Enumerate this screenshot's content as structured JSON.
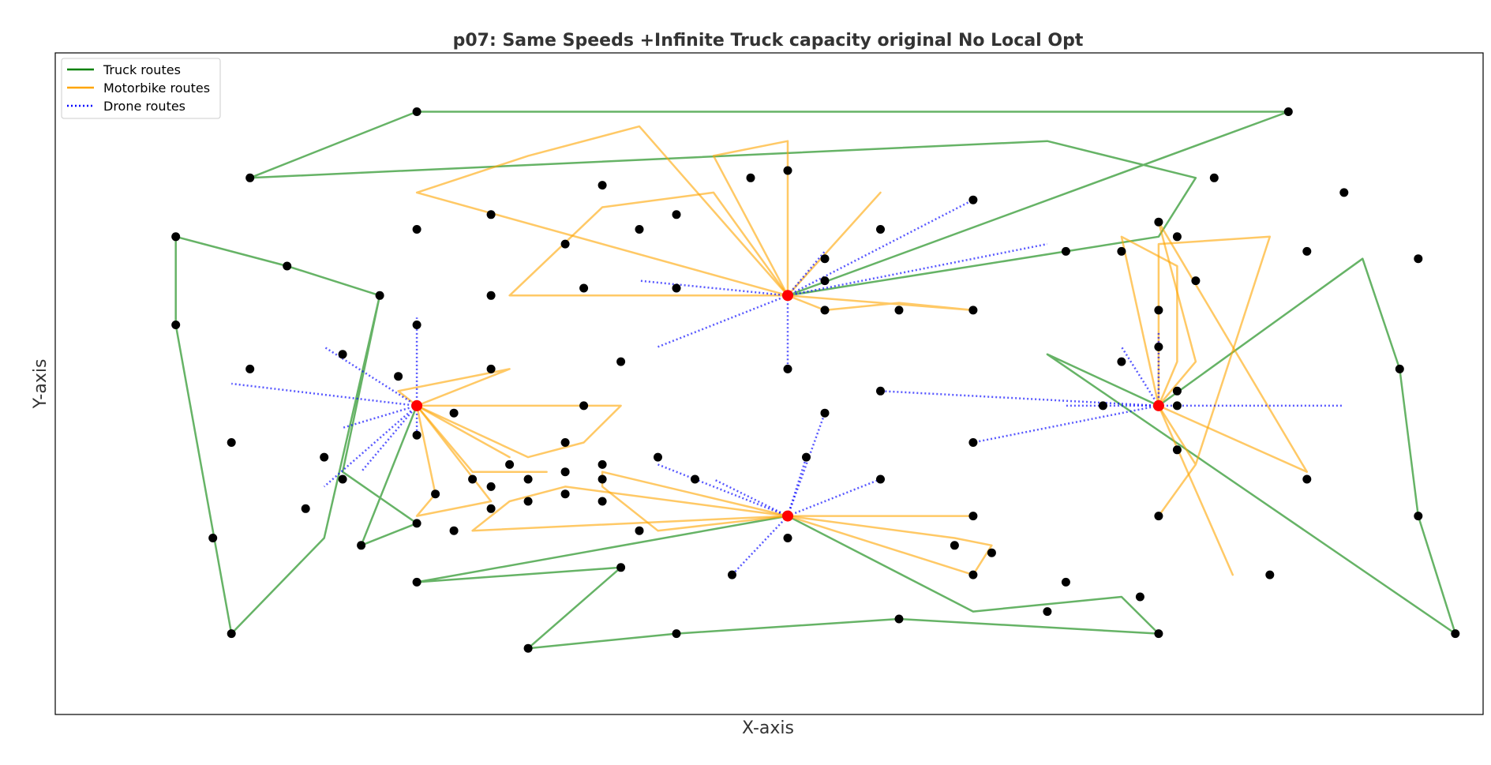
{
  "chart_data": {
    "type": "scatter",
    "title": "p07: Same Speeds +Infinite Truck capacity original No Local Opt",
    "xlabel": "X-axis",
    "ylabel": "Y-axis",
    "xlim": [
      -5,
      72
    ],
    "ylim": [
      -5,
      85
    ],
    "grid": false,
    "ticks": false,
    "legend": {
      "placement": "top-left",
      "entries": [
        {
          "label": "Truck routes",
          "color": "#008000",
          "style": "solid"
        },
        {
          "label": "Motorbike routes",
          "color": "#FFA500",
          "style": "solid"
        },
        {
          "label": "Drone routes",
          "color": "#0000FF",
          "style": "dotted"
        }
      ]
    },
    "colors": {
      "truck": "#008000",
      "motorbike": "#FFA500",
      "drone": "#0000FF",
      "customer": "#000000",
      "depot": "#FF0000"
    },
    "depots": [
      [
        14.5,
        37
      ],
      [
        34.5,
        52
      ],
      [
        54.5,
        37
      ],
      [
        34.5,
        22
      ]
    ],
    "customers": [
      [
        14.5,
        77
      ],
      [
        5.5,
        68
      ],
      [
        1.5,
        60
      ],
      [
        7.5,
        56
      ],
      [
        12.5,
        52
      ],
      [
        1.5,
        48
      ],
      [
        4.5,
        32
      ],
      [
        3.5,
        19
      ],
      [
        11.5,
        18
      ],
      [
        4.5,
        6
      ],
      [
        61.5,
        77
      ],
      [
        57.5,
        68
      ],
      [
        55.5,
        60
      ],
      [
        55.5,
        37
      ],
      [
        49.5,
        58
      ],
      [
        64.5,
        66
      ],
      [
        68.5,
        57
      ],
      [
        67.5,
        42
      ],
      [
        68.5,
        22
      ],
      [
        70.5,
        6
      ],
      [
        49.5,
        13
      ],
      [
        48.5,
        9
      ],
      [
        53.5,
        11
      ],
      [
        54.5,
        6
      ],
      [
        40.5,
        8
      ],
      [
        28.5,
        6
      ],
      [
        20.5,
        4
      ],
      [
        14.5,
        13
      ],
      [
        25.5,
        15
      ],
      [
        24.5,
        67
      ],
      [
        18.5,
        63
      ],
      [
        14.5,
        61
      ],
      [
        26.5,
        61
      ],
      [
        22.5,
        59
      ],
      [
        28.5,
        63
      ],
      [
        32.5,
        68
      ],
      [
        34.5,
        69
      ],
      [
        39.5,
        61
      ],
      [
        18.5,
        52
      ],
      [
        28.5,
        53
      ],
      [
        36.5,
        54
      ],
      [
        40.5,
        50
      ],
      [
        36.5,
        50
      ],
      [
        44.5,
        50
      ],
      [
        44.5,
        65
      ],
      [
        36.5,
        57
      ],
      [
        23.5,
        53
      ],
      [
        25.5,
        43
      ],
      [
        34.5,
        42
      ],
      [
        14.5,
        48
      ],
      [
        10.5,
        44
      ],
      [
        5.5,
        42
      ],
      [
        13.5,
        41
      ],
      [
        16.5,
        36
      ],
      [
        18.5,
        42
      ],
      [
        23.5,
        37
      ],
      [
        22.5,
        32
      ],
      [
        19.5,
        29
      ],
      [
        18.5,
        26
      ],
      [
        20.5,
        24
      ],
      [
        14.5,
        33
      ],
      [
        15.5,
        25
      ],
      [
        14.5,
        21
      ],
      [
        9.5,
        30
      ],
      [
        10.5,
        27
      ],
      [
        8.5,
        23
      ],
      [
        17.5,
        27
      ],
      [
        16.5,
        20
      ],
      [
        18.5,
        23
      ],
      [
        22.5,
        28
      ],
      [
        24.5,
        29
      ],
      [
        24.5,
        24
      ],
      [
        22.5,
        25
      ],
      [
        20.5,
        27
      ],
      [
        24.5,
        27
      ],
      [
        26.5,
        20
      ],
      [
        27.5,
        30
      ],
      [
        29.5,
        27
      ],
      [
        36.5,
        36
      ],
      [
        35.5,
        30
      ],
      [
        39.5,
        27
      ],
      [
        34.5,
        19
      ],
      [
        31.5,
        14
      ],
      [
        44.5,
        22
      ],
      [
        43.5,
        18
      ],
      [
        45.5,
        17
      ],
      [
        44.5,
        14
      ],
      [
        39.5,
        39
      ],
      [
        44.5,
        32
      ],
      [
        51.5,
        37
      ],
      [
        52.5,
        43
      ],
      [
        54.5,
        45
      ],
      [
        54.5,
        50
      ],
      [
        54.5,
        62
      ],
      [
        52.5,
        58
      ],
      [
        56.5,
        54
      ],
      [
        62.5,
        58
      ],
      [
        55.5,
        39
      ],
      [
        55.5,
        31
      ],
      [
        54.5,
        22
      ],
      [
        60.5,
        14
      ],
      [
        62.5,
        27
      ]
    ],
    "routes": {
      "truck": [
        [
          [
            34.5,
            52
          ],
          [
            61.5,
            77
          ],
          [
            14.5,
            77
          ],
          [
            5.5,
            68
          ],
          [
            48.5,
            73
          ],
          [
            56.5,
            68
          ],
          [
            54.5,
            60
          ],
          [
            34.5,
            52
          ]
        ],
        [
          [
            14.5,
            37
          ],
          [
            11.5,
            18
          ],
          [
            14.5,
            21
          ],
          [
            10.5,
            28
          ],
          [
            12.5,
            52
          ],
          [
            7.5,
            56
          ],
          [
            1.5,
            60
          ],
          [
            1.5,
            48
          ],
          [
            4.5,
            6
          ],
          [
            9.5,
            19
          ],
          [
            12.5,
            52
          ]
        ],
        [
          [
            34.5,
            22
          ],
          [
            14.5,
            13
          ],
          [
            25.5,
            15
          ],
          [
            20.5,
            4
          ],
          [
            28.5,
            6
          ],
          [
            40.5,
            8
          ],
          [
            54.5,
            6
          ],
          [
            52.5,
            11
          ],
          [
            48.5,
            10
          ],
          [
            44.5,
            9
          ],
          [
            34.5,
            22
          ]
        ],
        [
          [
            54.5,
            37
          ],
          [
            65.5,
            57
          ],
          [
            67.5,
            42
          ],
          [
            68.5,
            22
          ],
          [
            70.5,
            6
          ],
          [
            48.5,
            44
          ],
          [
            54.5,
            37
          ]
        ]
      ],
      "motorbike": [
        [
          [
            34.5,
            52
          ],
          [
            26.5,
            75
          ],
          [
            20.5,
            71
          ],
          [
            14.5,
            66
          ],
          [
            34.5,
            52
          ]
        ],
        [
          [
            34.5,
            52
          ],
          [
            30.5,
            71
          ],
          [
            34.5,
            73
          ],
          [
            34.5,
            52
          ]
        ],
        [
          [
            34.5,
            52
          ],
          [
            30.5,
            66
          ],
          [
            24.5,
            64
          ],
          [
            19.5,
            52
          ],
          [
            34.5,
            52
          ]
        ],
        [
          [
            34.5,
            52
          ],
          [
            39.5,
            66
          ],
          [
            34.5,
            52
          ]
        ],
        [
          [
            34.5,
            52
          ],
          [
            36.5,
            50
          ],
          [
            40.5,
            51
          ],
          [
            44.5,
            50
          ],
          [
            34.5,
            52
          ]
        ],
        [
          [
            14.5,
            37
          ],
          [
            25.5,
            37
          ],
          [
            23.5,
            32
          ],
          [
            20.5,
            30
          ],
          [
            14.5,
            37
          ]
        ],
        [
          [
            14.5,
            37
          ],
          [
            19.5,
            42
          ],
          [
            13.5,
            39
          ],
          [
            14.5,
            37
          ]
        ],
        [
          [
            14.5,
            37
          ],
          [
            15.5,
            25
          ],
          [
            14.5,
            22
          ],
          [
            18.5,
            24
          ],
          [
            14.5,
            37
          ]
        ],
        [
          [
            14.5,
            37
          ],
          [
            17.5,
            28
          ],
          [
            21.5,
            28
          ],
          [
            17.5,
            28
          ],
          [
            14.5,
            37
          ]
        ],
        [
          [
            14.5,
            37
          ],
          [
            19.5,
            30
          ],
          [
            14.5,
            37
          ]
        ],
        [
          [
            34.5,
            22
          ],
          [
            24.5,
            28
          ],
          [
            24.5,
            26
          ],
          [
            27.5,
            20
          ],
          [
            34.5,
            22
          ]
        ],
        [
          [
            34.5,
            22
          ],
          [
            22.5,
            26
          ],
          [
            19.5,
            24
          ],
          [
            17.5,
            20
          ],
          [
            34.5,
            22
          ]
        ],
        [
          [
            34.5,
            22
          ],
          [
            44.5,
            22
          ],
          [
            34.5,
            22
          ]
        ],
        [
          [
            34.5,
            22
          ],
          [
            43.5,
            19
          ],
          [
            45.5,
            18
          ],
          [
            44.5,
            14
          ],
          [
            34.5,
            22
          ]
        ],
        [
          [
            54.5,
            37
          ],
          [
            54.5,
            59
          ],
          [
            60.5,
            60
          ],
          [
            56.5,
            29
          ],
          [
            54.5,
            22
          ],
          [
            56.5,
            29
          ],
          [
            54.5,
            37
          ]
        ],
        [
          [
            54.5,
            37
          ],
          [
            56.5,
            43
          ],
          [
            54.5,
            62
          ],
          [
            62.5,
            28
          ],
          [
            54.5,
            37
          ]
        ],
        [
          [
            54.5,
            37
          ],
          [
            52.5,
            60
          ],
          [
            55.5,
            56
          ],
          [
            55.5,
            43
          ],
          [
            54.5,
            37
          ]
        ],
        [
          [
            54.5,
            37
          ],
          [
            58.5,
            14
          ],
          [
            54.5,
            37
          ]
        ]
      ],
      "drone": [
        [
          [
            34.5,
            52
          ],
          [
            44.5,
            65
          ]
        ],
        [
          [
            34.5,
            52
          ],
          [
            48.5,
            59
          ]
        ],
        [
          [
            34.5,
            52
          ],
          [
            36.5,
            58
          ]
        ],
        [
          [
            34.5,
            52
          ],
          [
            26.5,
            54
          ]
        ],
        [
          [
            34.5,
            52
          ],
          [
            27.5,
            45
          ]
        ],
        [
          [
            34.5,
            52
          ],
          [
            34.5,
            42
          ]
        ],
        [
          [
            14.5,
            37
          ],
          [
            14.5,
            49
          ]
        ],
        [
          [
            14.5,
            37
          ],
          [
            9.5,
            45
          ]
        ],
        [
          [
            14.5,
            37
          ],
          [
            4.5,
            40
          ]
        ],
        [
          [
            14.5,
            37
          ],
          [
            10.5,
            34
          ]
        ],
        [
          [
            14.5,
            37
          ],
          [
            9.5,
            26
          ]
        ],
        [
          [
            14.5,
            37
          ],
          [
            11.5,
            28
          ]
        ],
        [
          [
            14.5,
            37
          ],
          [
            14.5,
            33
          ]
        ],
        [
          [
            34.5,
            22
          ],
          [
            27.5,
            29
          ]
        ],
        [
          [
            34.5,
            22
          ],
          [
            30.5,
            27
          ]
        ],
        [
          [
            34.5,
            22
          ],
          [
            36.5,
            36
          ]
        ],
        [
          [
            34.5,
            22
          ],
          [
            35.5,
            30
          ]
        ],
        [
          [
            34.5,
            22
          ],
          [
            39.5,
            27
          ]
        ],
        [
          [
            34.5,
            22
          ],
          [
            31.5,
            14
          ]
        ],
        [
          [
            54.5,
            37
          ],
          [
            39.5,
            39
          ]
        ],
        [
          [
            54.5,
            37
          ],
          [
            44.5,
            32
          ]
        ],
        [
          [
            54.5,
            37
          ],
          [
            49.5,
            37
          ]
        ],
        [
          [
            54.5,
            37
          ],
          [
            52.5,
            45
          ]
        ],
        [
          [
            54.5,
            37
          ],
          [
            54.5,
            47
          ]
        ],
        [
          [
            54.5,
            37
          ],
          [
            64.5,
            37
          ]
        ]
      ]
    }
  }
}
